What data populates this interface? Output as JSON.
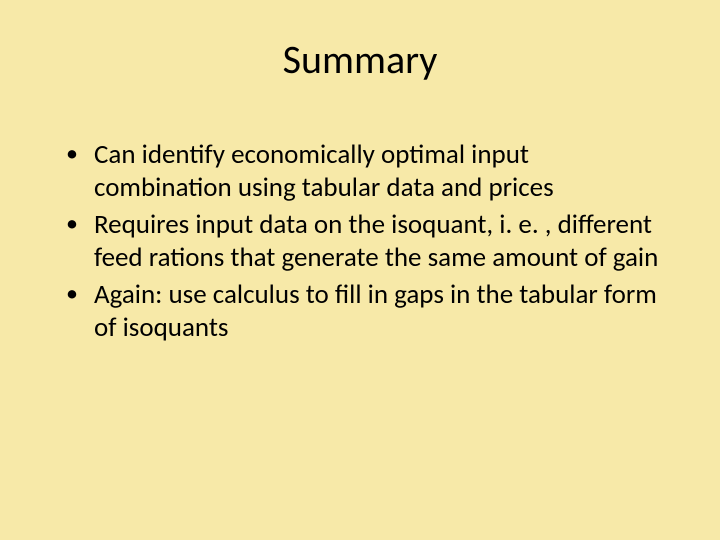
{
  "slide": {
    "title": "Summary",
    "bullets": [
      "Can identify economically optimal input combination using tabular data and prices",
      "Requires input data on the isoquant, i. e. , different feed rations that generate the same amount of gain",
      "Again: use calculus to fill in gaps in the tabular form of isoquants"
    ],
    "background_color": "#f7e9a8",
    "text_color": "#000000",
    "title_fontsize": 40,
    "body_fontsize": 27,
    "font_family": "Calibri"
  }
}
